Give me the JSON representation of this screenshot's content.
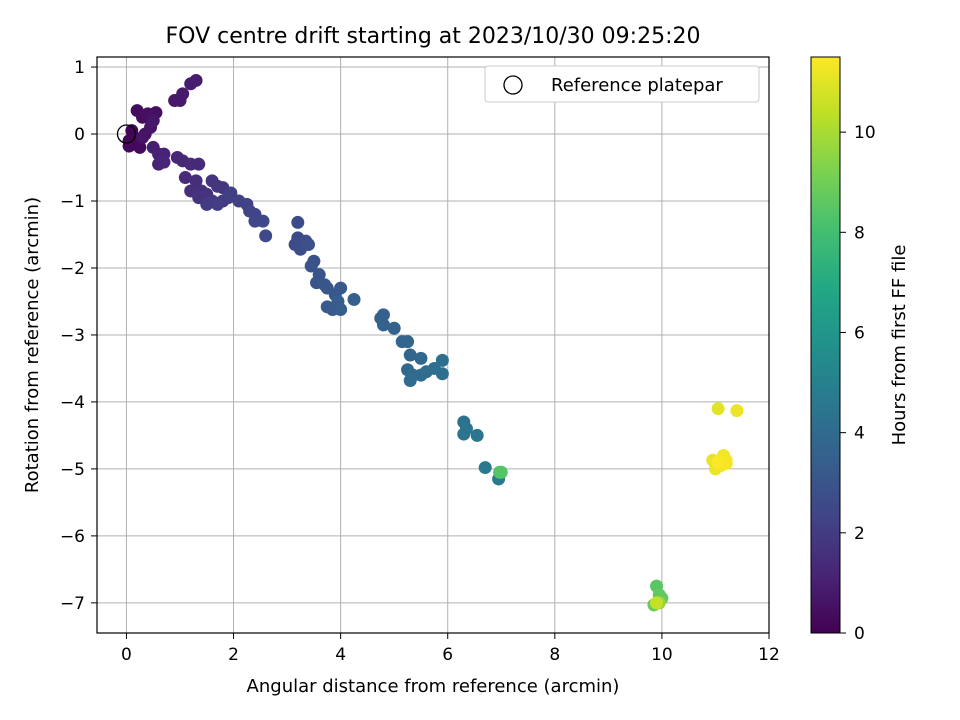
{
  "chart_data": {
    "type": "scatter",
    "title": "FOV centre drift starting at 2023/10/30 09:25:20",
    "xlabel": "Angular distance from reference (arcmin)",
    "ylabel": "Rotation from reference (arcmin)",
    "xlim": [
      -0.55,
      12
    ],
    "ylim": [
      -7.45,
      1.15
    ],
    "xticks": [
      0,
      2,
      4,
      6,
      8,
      10,
      12
    ],
    "yticks": [
      1,
      0,
      -1,
      -2,
      -3,
      -4,
      -5,
      -6,
      -7
    ],
    "grid": true,
    "legend": {
      "placement": "top-right",
      "entries": [
        "Reference platepar"
      ]
    },
    "reference_point": {
      "x": 0,
      "y": 0
    },
    "colorbar": {
      "label": "Hours from first FF file",
      "colormap": "viridis",
      "range": [
        0,
        11.5
      ],
      "ticks": [
        0,
        2,
        4,
        6,
        8,
        10
      ]
    },
    "points": [
      {
        "x": 0.05,
        "y": -0.1,
        "h": 0.05
      },
      {
        "x": 0.1,
        "y": 0.05,
        "h": 0.1
      },
      {
        "x": 0.2,
        "y": -0.12,
        "h": 0.15
      },
      {
        "x": 0.25,
        "y": -0.08,
        "h": 0.2
      },
      {
        "x": 0.05,
        "y": -0.18,
        "h": 0.25
      },
      {
        "x": 0.25,
        "y": -0.2,
        "h": 0.3
      },
      {
        "x": 0.2,
        "y": 0.35,
        "h": 0.35
      },
      {
        "x": 0.3,
        "y": 0.25,
        "h": 0.4
      },
      {
        "x": 0.4,
        "y": 0.3,
        "h": 0.45
      },
      {
        "x": 0.55,
        "y": 0.32,
        "h": 0.5
      },
      {
        "x": 0.35,
        "y": 0.0,
        "h": 0.55
      },
      {
        "x": 0.45,
        "y": 0.1,
        "h": 0.6
      },
      {
        "x": 0.3,
        "y": -0.05,
        "h": 0.65
      },
      {
        "x": 0.5,
        "y": 0.2,
        "h": 0.7
      },
      {
        "x": 0.9,
        "y": 0.5,
        "h": 0.75
      },
      {
        "x": 1.0,
        "y": 0.5,
        "h": 0.8
      },
      {
        "x": 1.05,
        "y": 0.6,
        "h": 0.85
      },
      {
        "x": 1.2,
        "y": 0.75,
        "h": 0.9
      },
      {
        "x": 1.3,
        "y": 0.8,
        "h": 0.95
      },
      {
        "x": 0.5,
        "y": -0.2,
        "h": 1.0
      },
      {
        "x": 0.6,
        "y": -0.3,
        "h": 1.05
      },
      {
        "x": 0.7,
        "y": -0.3,
        "h": 1.1
      },
      {
        "x": 0.6,
        "y": -0.45,
        "h": 1.15
      },
      {
        "x": 0.7,
        "y": -0.42,
        "h": 1.2
      },
      {
        "x": 0.95,
        "y": -0.35,
        "h": 1.25
      },
      {
        "x": 1.05,
        "y": -0.4,
        "h": 1.3
      },
      {
        "x": 1.2,
        "y": -0.45,
        "h": 1.35
      },
      {
        "x": 1.35,
        "y": -0.45,
        "h": 1.4
      },
      {
        "x": 1.1,
        "y": -0.65,
        "h": 1.45
      },
      {
        "x": 1.3,
        "y": -0.7,
        "h": 1.5
      },
      {
        "x": 1.2,
        "y": -0.85,
        "h": 1.55
      },
      {
        "x": 1.4,
        "y": -0.85,
        "h": 1.6
      },
      {
        "x": 1.35,
        "y": -0.95,
        "h": 1.65
      },
      {
        "x": 1.5,
        "y": -0.9,
        "h": 1.7
      },
      {
        "x": 1.6,
        "y": -0.7,
        "h": 1.75
      },
      {
        "x": 1.7,
        "y": -0.78,
        "h": 1.8
      },
      {
        "x": 1.8,
        "y": -0.8,
        "h": 1.85
      },
      {
        "x": 1.6,
        "y": -1.0,
        "h": 1.9
      },
      {
        "x": 1.8,
        "y": -1.0,
        "h": 1.95
      },
      {
        "x": 1.5,
        "y": -1.05,
        "h": 2.0
      },
      {
        "x": 1.7,
        "y": -1.05,
        "h": 2.05
      },
      {
        "x": 1.9,
        "y": -0.95,
        "h": 2.1
      },
      {
        "x": 1.95,
        "y": -0.88,
        "h": 2.15
      },
      {
        "x": 2.1,
        "y": -1.0,
        "h": 2.2
      },
      {
        "x": 2.25,
        "y": -1.05,
        "h": 2.25
      },
      {
        "x": 2.3,
        "y": -1.15,
        "h": 2.3
      },
      {
        "x": 2.4,
        "y": -1.2,
        "h": 2.35
      },
      {
        "x": 2.4,
        "y": -1.3,
        "h": 2.4
      },
      {
        "x": 2.55,
        "y": -1.3,
        "h": 2.45
      },
      {
        "x": 2.6,
        "y": -1.52,
        "h": 2.5
      },
      {
        "x": 3.15,
        "y": -1.65,
        "h": 2.55
      },
      {
        "x": 3.2,
        "y": -1.55,
        "h": 2.6
      },
      {
        "x": 3.2,
        "y": -1.32,
        "h": 2.65
      },
      {
        "x": 3.25,
        "y": -1.72,
        "h": 2.7
      },
      {
        "x": 3.35,
        "y": -1.6,
        "h": 2.75
      },
      {
        "x": 3.4,
        "y": -1.65,
        "h": 2.8
      },
      {
        "x": 3.5,
        "y": -1.9,
        "h": 2.85
      },
      {
        "x": 3.45,
        "y": -1.97,
        "h": 2.9
      },
      {
        "x": 3.6,
        "y": -2.1,
        "h": 2.95
      },
      {
        "x": 3.55,
        "y": -2.22,
        "h": 3.0
      },
      {
        "x": 3.7,
        "y": -2.25,
        "h": 3.05
      },
      {
        "x": 3.75,
        "y": -2.3,
        "h": 3.1
      },
      {
        "x": 3.9,
        "y": -2.4,
        "h": 3.15
      },
      {
        "x": 4.0,
        "y": -2.3,
        "h": 3.2
      },
      {
        "x": 3.75,
        "y": -2.58,
        "h": 3.25
      },
      {
        "x": 3.85,
        "y": -2.62,
        "h": 3.3
      },
      {
        "x": 3.95,
        "y": -2.5,
        "h": 3.35
      },
      {
        "x": 4.0,
        "y": -2.62,
        "h": 3.4
      },
      {
        "x": 4.25,
        "y": -2.47,
        "h": 3.45
      },
      {
        "x": 4.75,
        "y": -2.75,
        "h": 3.5
      },
      {
        "x": 4.8,
        "y": -2.7,
        "h": 3.55
      },
      {
        "x": 4.8,
        "y": -2.85,
        "h": 3.6
      },
      {
        "x": 5.0,
        "y": -2.9,
        "h": 3.65
      },
      {
        "x": 5.15,
        "y": -3.1,
        "h": 3.7
      },
      {
        "x": 5.25,
        "y": -3.1,
        "h": 3.75
      },
      {
        "x": 5.3,
        "y": -3.3,
        "h": 3.8
      },
      {
        "x": 5.5,
        "y": -3.35,
        "h": 3.85
      },
      {
        "x": 5.25,
        "y": -3.52,
        "h": 3.9
      },
      {
        "x": 5.35,
        "y": -3.6,
        "h": 3.95
      },
      {
        "x": 5.5,
        "y": -3.6,
        "h": 4.0
      },
      {
        "x": 5.3,
        "y": -3.68,
        "h": 4.05
      },
      {
        "x": 5.6,
        "y": -3.55,
        "h": 4.1
      },
      {
        "x": 5.75,
        "y": -3.5,
        "h": 4.15
      },
      {
        "x": 5.9,
        "y": -3.38,
        "h": 4.2
      },
      {
        "x": 5.9,
        "y": -3.58,
        "h": 4.25
      },
      {
        "x": 6.3,
        "y": -4.3,
        "h": 4.3
      },
      {
        "x": 6.35,
        "y": -4.4,
        "h": 4.35
      },
      {
        "x": 6.3,
        "y": -4.48,
        "h": 4.4
      },
      {
        "x": 6.55,
        "y": -4.5,
        "h": 4.45
      },
      {
        "x": 6.7,
        "y": -4.98,
        "h": 4.6
      },
      {
        "x": 6.95,
        "y": -5.15,
        "h": 4.7
      },
      {
        "x": 6.97,
        "y": -5.05,
        "h": 8.2
      },
      {
        "x": 7.0,
        "y": -5.05,
        "h": 8.4
      },
      {
        "x": 9.9,
        "y": -6.75,
        "h": 8.5
      },
      {
        "x": 9.95,
        "y": -6.88,
        "h": 8.6
      },
      {
        "x": 10.0,
        "y": -6.93,
        "h": 8.7
      },
      {
        "x": 9.85,
        "y": -7.03,
        "h": 8.8
      },
      {
        "x": 9.95,
        "y": -7.0,
        "h": 9.6
      },
      {
        "x": 9.9,
        "y": -7.0,
        "h": 10.5
      },
      {
        "x": 11.05,
        "y": -4.1,
        "h": 11.0
      },
      {
        "x": 11.4,
        "y": -4.13,
        "h": 11.2
      },
      {
        "x": 10.95,
        "y": -4.87,
        "h": 11.1
      },
      {
        "x": 11.0,
        "y": -5.0,
        "h": 11.15
      },
      {
        "x": 11.1,
        "y": -4.95,
        "h": 11.25
      },
      {
        "x": 11.15,
        "y": -4.8,
        "h": 11.3
      },
      {
        "x": 11.2,
        "y": -4.87,
        "h": 11.35
      },
      {
        "x": 11.2,
        "y": -4.92,
        "h": 11.4
      },
      {
        "x": 11.05,
        "y": -4.9,
        "h": 11.45
      }
    ]
  },
  "colors": {
    "viridis": [
      "#440154",
      "#482475",
      "#414487",
      "#355f8d",
      "#2a788e",
      "#21918c",
      "#22a884",
      "#44bf70",
      "#7ad151",
      "#bddf26",
      "#fde725"
    ],
    "grid": "#b0b0b0",
    "reference_marker": "#000000"
  }
}
